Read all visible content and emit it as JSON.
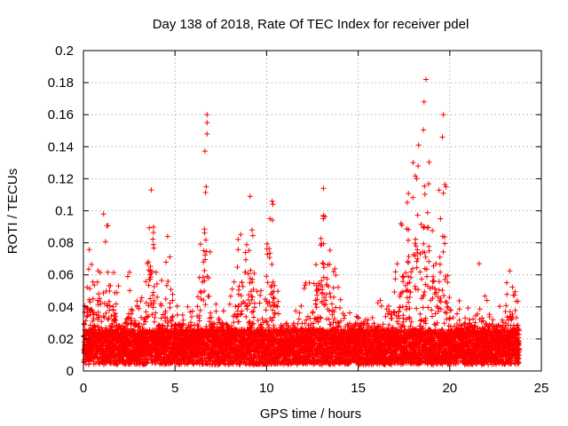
{
  "chart_data": {
    "type": "scatter",
    "title": "Day 138 of 2018, Rate Of TEC Index for receiver pdel",
    "xlabel": "GPS time / hours",
    "ylabel": "ROTI / TECUs",
    "xlim": [
      0,
      25
    ],
    "ylim": [
      0,
      0.2
    ],
    "x_ticks": [
      0,
      5,
      10,
      15,
      20,
      25
    ],
    "y_ticks": [
      0,
      0.02,
      0.04,
      0.06,
      0.08,
      0.1,
      0.12,
      0.14,
      0.16,
      0.18,
      0.2
    ],
    "x_tick_labels": [
      "0",
      "5",
      "10",
      "15",
      "20",
      "25"
    ],
    "y_tick_labels": [
      "0",
      "0.02",
      "0.04",
      "0.06",
      "0.08",
      "0.1",
      "0.12",
      "0.14",
      "0.16",
      "0.18",
      "0.2"
    ],
    "grid": true,
    "marker": "+",
    "marker_color": "#ff0000",
    "series": [
      {
        "name": "ROTI",
        "note": "approximate envelope of the dense point cloud (hour, ROTI max)",
        "envelope": [
          [
            0.0,
            0.045
          ],
          [
            0.3,
            0.077
          ],
          [
            0.6,
            0.06
          ],
          [
            1.0,
            0.098
          ],
          [
            1.4,
            0.09
          ],
          [
            1.7,
            0.06
          ],
          [
            2.2,
            0.045
          ],
          [
            2.6,
            0.072
          ],
          [
            3.0,
            0.04
          ],
          [
            3.3,
            0.055
          ],
          [
            3.7,
            0.113
          ],
          [
            4.1,
            0.045
          ],
          [
            4.6,
            0.084
          ],
          [
            5.0,
            0.04
          ],
          [
            5.5,
            0.045
          ],
          [
            6.2,
            0.035
          ],
          [
            6.7,
            0.16
          ],
          [
            7.0,
            0.05
          ],
          [
            7.6,
            0.04
          ],
          [
            8.1,
            0.05
          ],
          [
            8.6,
            0.098
          ],
          [
            9.1,
            0.109
          ],
          [
            9.6,
            0.045
          ],
          [
            10.3,
            0.106
          ],
          [
            10.8,
            0.025
          ],
          [
            11.4,
            0.03
          ],
          [
            12.0,
            0.055
          ],
          [
            12.5,
            0.06
          ],
          [
            13.1,
            0.114
          ],
          [
            13.6,
            0.07
          ],
          [
            14.2,
            0.04
          ],
          [
            14.8,
            0.035
          ],
          [
            15.5,
            0.04
          ],
          [
            16.2,
            0.045
          ],
          [
            16.8,
            0.04
          ],
          [
            17.5,
            0.11
          ],
          [
            17.9,
            0.13
          ],
          [
            18.4,
            0.15
          ],
          [
            18.7,
            0.182
          ],
          [
            19.2,
            0.09
          ],
          [
            19.6,
            0.161
          ],
          [
            20.1,
            0.05
          ],
          [
            20.6,
            0.045
          ],
          [
            21.1,
            0.04
          ],
          [
            21.6,
            0.068
          ],
          [
            22.2,
            0.035
          ],
          [
            22.7,
            0.04
          ],
          [
            23.3,
            0.064
          ],
          [
            23.8,
            0.045
          ]
        ],
        "outliers": [
          [
            6.75,
            0.16
          ],
          [
            6.75,
            0.155
          ],
          [
            6.75,
            0.148
          ],
          [
            6.7,
            0.115
          ],
          [
            18.7,
            0.182
          ],
          [
            19.65,
            0.16
          ],
          [
            19.6,
            0.146
          ],
          [
            19.65,
            0.111
          ],
          [
            13.1,
            0.114
          ],
          [
            13.1,
            0.097
          ],
          [
            13.1,
            0.095
          ],
          [
            3.7,
            0.113
          ],
          [
            1.1,
            0.098
          ],
          [
            10.3,
            0.106
          ],
          [
            10.35,
            0.104
          ],
          [
            9.1,
            0.109
          ],
          [
            4.6,
            0.084
          ],
          [
            21.6,
            0.067
          ],
          [
            18.2,
            0.12
          ],
          [
            18.0,
            0.13
          ],
          [
            18.3,
            0.141
          ]
        ]
      }
    ]
  }
}
